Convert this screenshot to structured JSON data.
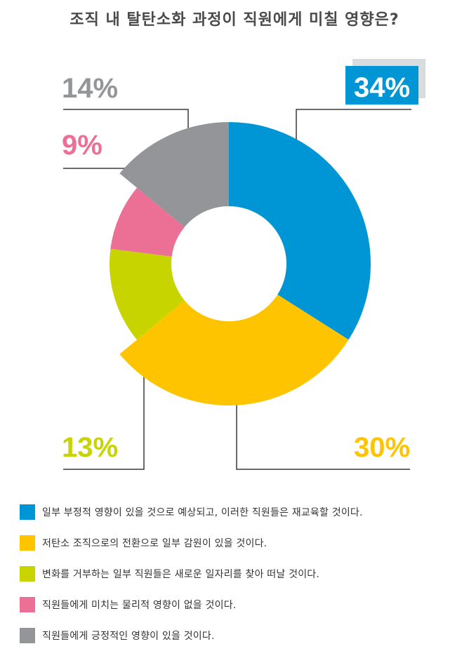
{
  "chart_data": {
    "type": "pie",
    "title": "조직 내 탈탄소화 과정이 직원에게 미칠 영향은?",
    "slices": [
      {
        "label": "일부 부정적 영향이 있을 것으로 예상되고, 이러한 직원들은 재교육할 것이다.",
        "value": 34,
        "value_label": "34%",
        "color": "#0096d6"
      },
      {
        "label": "저탄소 조직으로의 전환으로 일부 감원이 있을 것이다.",
        "value": 30,
        "value_label": "30%",
        "color": "#ffc400"
      },
      {
        "label": "변화를 거부하는 일부 직원들은 새로운 일자리를 찾아 떠날 것이다.",
        "value": 13,
        "value_label": "13%",
        "color": "#c8d400"
      },
      {
        "label": "직원들에게 미치는 물리적 영향이 없을 것이다.",
        "value": 9,
        "value_label": "9%",
        "color": "#ec7095"
      },
      {
        "label": "직원들에게 긍정적인 영향이 있을 것이다.",
        "value": 14,
        "value_label": "14%",
        "color": "#939598"
      }
    ],
    "legend_position": "bottom",
    "grid": false
  },
  "highlight_color": "#d9dcde",
  "leader_color": "#3a3a3a"
}
